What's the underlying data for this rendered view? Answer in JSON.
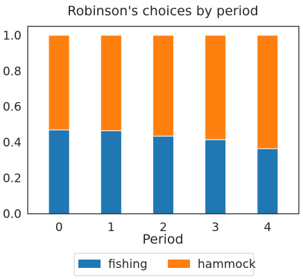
{
  "chart_data": {
    "type": "bar",
    "stacked": true,
    "title": "Robinson's choices by period",
    "xlabel": "Period",
    "ylabel": "",
    "categories": [
      "0",
      "1",
      "2",
      "3",
      "4"
    ],
    "ylim": [
      0,
      1.05
    ],
    "yticks": [
      "0.0",
      "0.2",
      "0.4",
      "0.6",
      "0.8",
      "1.0"
    ],
    "grid": false,
    "legend_position": "bottom-center",
    "series": [
      {
        "name": "fishing",
        "color": "#1f77b4",
        "values": [
          0.47,
          0.465,
          0.435,
          0.415,
          0.365
        ]
      },
      {
        "name": "hammock",
        "color": "#ff7f0e",
        "values": [
          0.53,
          0.535,
          0.565,
          0.585,
          0.635
        ]
      }
    ]
  }
}
